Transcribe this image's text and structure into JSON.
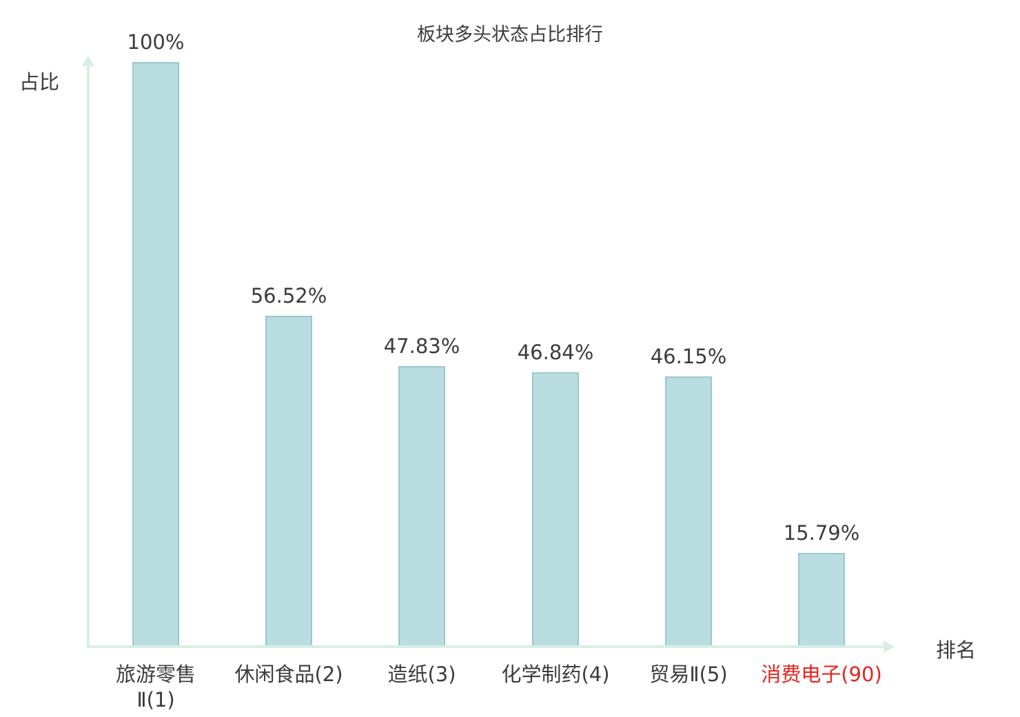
{
  "chart_data": {
    "type": "bar",
    "title": "板块多头状态占比排行",
    "xlabel": "排名",
    "ylabel": "占比",
    "categories": [
      "旅游零售Ⅱ(1)",
      "休闲食品(2)",
      "造纸(3)",
      "化学制药(4)",
      "贸易Ⅱ(5)",
      "消费电子(90)"
    ],
    "category_lines": [
      [
        "旅游零售",
        "Ⅱ(1)"
      ],
      [
        "休闲食品(2)"
      ],
      [
        "造纸(3)"
      ],
      [
        "化学制药(4)"
      ],
      [
        "贸易Ⅱ(5)"
      ],
      [
        "消费电子(90)"
      ]
    ],
    "values": [
      100,
      56.52,
      47.83,
      46.84,
      46.15,
      15.79
    ],
    "value_labels": [
      "100%",
      "56.52%",
      "47.83%",
      "46.84%",
      "46.15%",
      "15.79%"
    ],
    "ylim": [
      0,
      100
    ],
    "grid": false,
    "legend": null,
    "highlight_index": 5,
    "colors": {
      "bar_fill": "#b9dde1",
      "bar_border": "#97c8ce",
      "axis": "#d9efe4",
      "text": "#3c3c3c",
      "highlight_text": "#e8251f",
      "background": "#ffffff"
    }
  }
}
